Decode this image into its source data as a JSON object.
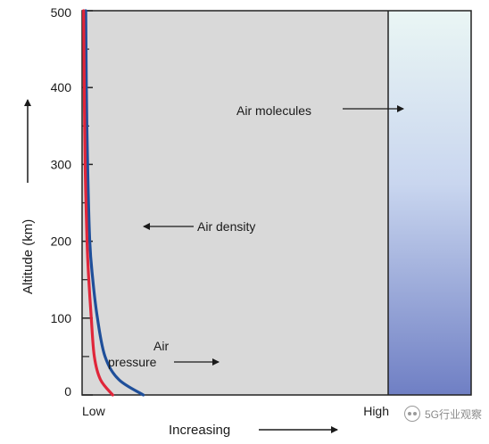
{
  "chart_data": {
    "type": "line",
    "ylabel": "Altitude (km)",
    "xlabel": "Increasing",
    "x_tick_labels": [
      "Low",
      "High"
    ],
    "y_ticks": [
      0,
      100,
      200,
      300,
      400,
      500
    ],
    "ylim": [
      0,
      500
    ],
    "xlim": [
      0,
      1
    ],
    "grid": false,
    "plot_background": "#d9d9d9",
    "series": [
      {
        "name": "Air density",
        "color": "#1f4f9a",
        "points": [
          [
            0.2,
            0
          ],
          [
            0.12,
            20
          ],
          [
            0.075,
            50
          ],
          [
            0.05,
            100
          ],
          [
            0.035,
            150
          ],
          [
            0.025,
            200
          ],
          [
            0.018,
            300
          ],
          [
            0.014,
            400
          ],
          [
            0.012,
            500
          ]
        ]
      },
      {
        "name": "Air pressure",
        "color": "#e0263a",
        "points": [
          [
            0.1,
            0
          ],
          [
            0.06,
            20
          ],
          [
            0.04,
            50
          ],
          [
            0.03,
            100
          ],
          [
            0.022,
            150
          ],
          [
            0.016,
            200
          ],
          [
            0.01,
            300
          ],
          [
            0.007,
            400
          ],
          [
            0.005,
            500
          ]
        ]
      }
    ],
    "annotations": {
      "air_molecules": "Air molecules",
      "air_density": "Air density",
      "air_pressure_line1": "Air",
      "air_pressure_line2": "pressure"
    },
    "molecules_panel_colors": [
      "#eaf6f4",
      "#c9d6ef",
      "#6f7fc4"
    ]
  },
  "watermark": {
    "text": "5G行业观察",
    "icon": "wechat-icon"
  }
}
